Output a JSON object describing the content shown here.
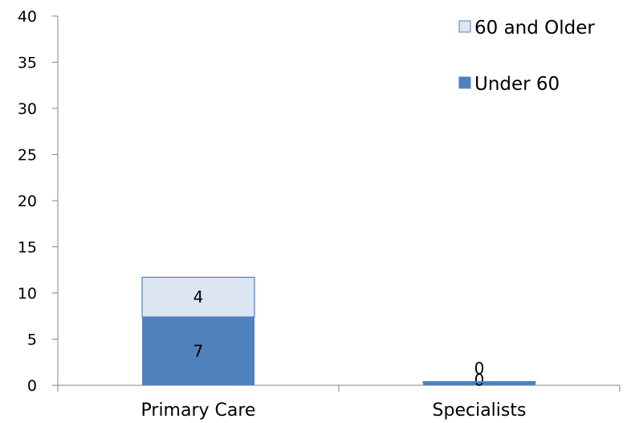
{
  "chart_data": {
    "type": "bar",
    "stacked": true,
    "categories": [
      "Primary Care",
      "Specialists"
    ],
    "series": [
      {
        "name": "Under 60",
        "values": [
          7.4,
          0.3
        ],
        "labels": [
          "7",
          "0"
        ],
        "color": "#4f81bd"
      },
      {
        "name": "60 and Older",
        "values": [
          4.3,
          0.1
        ],
        "labels": [
          "4",
          "0"
        ],
        "color": "#dce6f2"
      }
    ],
    "ylim": [
      0,
      40
    ],
    "yticks": [
      "0",
      "5",
      "10",
      "15",
      "20",
      "25",
      "30",
      "35",
      "40"
    ],
    "legend_placement": "top-right",
    "grid": false
  }
}
